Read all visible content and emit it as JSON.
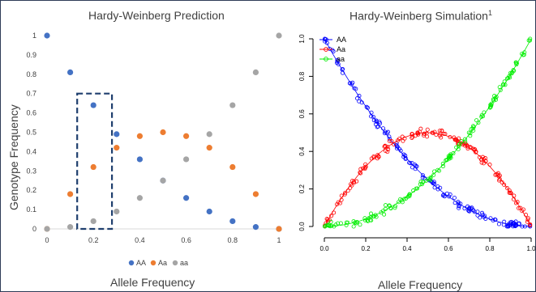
{
  "chart_data": [
    {
      "type": "scatter",
      "title": "Hardy-Weinberg Prediction",
      "xlabel": "Allele Frequency",
      "ylabel": "Genotype Frequency",
      "xlim": [
        0,
        1
      ],
      "ylim": [
        0,
        1
      ],
      "x_ticks": [
        "0",
        "0.2",
        "0.4",
        "0.6",
        "0.8",
        "1"
      ],
      "y_ticks": [
        "0",
        "0.1",
        "0.2",
        "0.3",
        "0.4",
        "0.5",
        "0.6",
        "0.7",
        "0.8",
        "0.9",
        "1"
      ],
      "legend": "bottom",
      "grid": false,
      "series": [
        {
          "name": "AA",
          "color": "#4472c4",
          "points": [
            [
              0,
              1
            ],
            [
              0.1,
              0.81
            ],
            [
              0.2,
              0.64
            ],
            [
              0.3,
              0.49
            ],
            [
              0.4,
              0.36
            ],
            [
              0.5,
              0.25
            ],
            [
              0.6,
              0.16
            ],
            [
              0.7,
              0.09
            ],
            [
              0.8,
              0.04
            ],
            [
              0.9,
              0.01
            ],
            [
              1,
              0
            ]
          ]
        },
        {
          "name": "Aa",
          "color": "#ed7d31",
          "points": [
            [
              0,
              0
            ],
            [
              0.1,
              0.18
            ],
            [
              0.2,
              0.32
            ],
            [
              0.3,
              0.42
            ],
            [
              0.4,
              0.48
            ],
            [
              0.5,
              0.5
            ],
            [
              0.6,
              0.48
            ],
            [
              0.7,
              0.42
            ],
            [
              0.8,
              0.32
            ],
            [
              0.9,
              0.18
            ],
            [
              1,
              0
            ]
          ]
        },
        {
          "name": "aa",
          "color": "#a5a5a5",
          "points": [
            [
              0,
              0
            ],
            [
              0.1,
              0.01
            ],
            [
              0.2,
              0.04
            ],
            [
              0.3,
              0.09
            ],
            [
              0.4,
              0.16
            ],
            [
              0.5,
              0.25
            ],
            [
              0.6,
              0.36
            ],
            [
              0.7,
              0.49
            ],
            [
              0.8,
              0.64
            ],
            [
              0.9,
              0.81
            ],
            [
              1,
              1
            ]
          ]
        }
      ],
      "highlight": {
        "x": [
          0.13,
          0.28
        ],
        "y": [
          0,
          0.7
        ],
        "color": "#1f3f6e"
      }
    },
    {
      "type": "scatter",
      "title": "Hardy-Weinberg Simulation",
      "title_superscript": "1",
      "xlabel": "Allele Frequency",
      "ylabel": "",
      "xlim": [
        0,
        1
      ],
      "ylim": [
        0,
        1
      ],
      "x_ticks": [
        "0.0",
        "0.2",
        "0.4",
        "0.6",
        "0.8",
        "1.0"
      ],
      "y_ticks": [
        "0.0",
        "0.2",
        "0.4",
        "0.6",
        "0.8",
        "1.0"
      ],
      "legend": "top-left",
      "grid": false,
      "markers": "open-circles",
      "samples_per_series": 150,
      "jitter": 0.03,
      "series": [
        {
          "name": "AA",
          "color": "#0000ff",
          "formula": "(1-p)^2"
        },
        {
          "name": "Aa",
          "color": "#ff0000",
          "formula": "2p(1-p)"
        },
        {
          "name": "aa",
          "color": "#00ee00",
          "formula": "p^2"
        }
      ]
    }
  ]
}
